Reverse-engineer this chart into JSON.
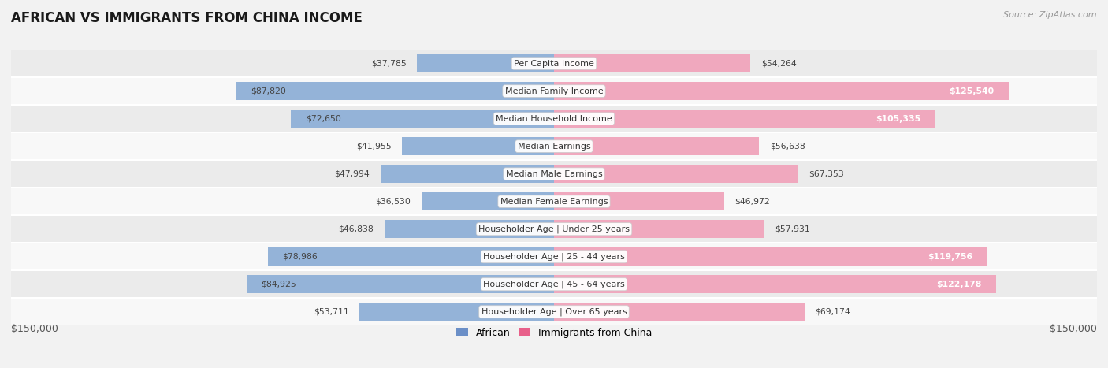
{
  "title": "AFRICAN VS IMMIGRANTS FROM CHINA INCOME",
  "source": "Source: ZipAtlas.com",
  "categories": [
    "Per Capita Income",
    "Median Family Income",
    "Median Household Income",
    "Median Earnings",
    "Median Male Earnings",
    "Median Female Earnings",
    "Householder Age | Under 25 years",
    "Householder Age | 25 - 44 years",
    "Householder Age | 45 - 64 years",
    "Householder Age | Over 65 years"
  ],
  "african_values": [
    37785,
    87820,
    72650,
    41955,
    47994,
    36530,
    46838,
    78986,
    84925,
    53711
  ],
  "china_values": [
    54264,
    125540,
    105335,
    56638,
    67353,
    46972,
    57931,
    119756,
    122178,
    69174
  ],
  "african_labels": [
    "$37,785",
    "$87,820",
    "$72,650",
    "$41,955",
    "$47,994",
    "$36,530",
    "$46,838",
    "$78,986",
    "$84,925",
    "$53,711"
  ],
  "china_labels": [
    "$54,264",
    "$125,540",
    "$105,335",
    "$56,638",
    "$67,353",
    "$46,972",
    "$57,931",
    "$119,756",
    "$122,178",
    "$69,174"
  ],
  "african_color": "#94b3d8",
  "african_color_legend": "#6b8fc7",
  "china_color": "#f0a8be",
  "china_color_legend": "#e8608a",
  "max_val": 150000,
  "bg_color": "#f2f2f2",
  "row_colors": [
    "#ebebeb",
    "#f8f8f8"
  ],
  "label_color_dark": "#444444",
  "label_color_white": "#ffffff",
  "inside_threshold": 100000,
  "x_label_left": "$150,000",
  "x_label_right": "$150,000",
  "bar_height": 0.65,
  "category_fontsize": 8,
  "label_fontsize": 7.8,
  "title_fontsize": 12,
  "source_fontsize": 8
}
